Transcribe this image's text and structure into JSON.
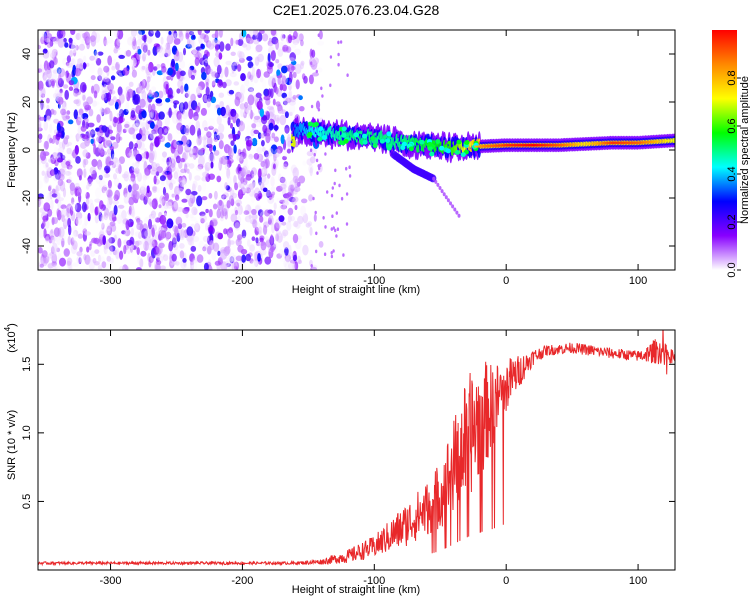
{
  "title": "C2E1.2025.076.23.04.G28",
  "chart_data": [
    {
      "type": "heatmap",
      "xlabel": "Height of straight line (km)",
      "ylabel": "Frequency (Hz)",
      "xlim": [
        -355,
        128
      ],
      "ylim": [
        -50,
        50
      ],
      "xticks": [
        "-300",
        "-200",
        "-100",
        "0",
        "100"
      ],
      "xtick_values": [
        -300,
        -200,
        -100,
        0,
        100
      ],
      "yticks": [
        "40",
        "20",
        "0",
        "-20",
        "-40"
      ],
      "ytick_values": [
        40,
        20,
        0,
        -20,
        -40
      ],
      "colorbar": {
        "label": "Normalized spectral amplitude",
        "ticks": [
          "0.0",
          "0.2",
          "0.4",
          "0.6",
          "0.8"
        ],
        "tick_values": [
          0.0,
          0.2,
          0.4,
          0.6,
          0.8
        ],
        "range": [
          0,
          1
        ],
        "colors": [
          "#ffffff",
          "#8800ff",
          "#0000ff",
          "#00ffff",
          "#00ff00",
          "#ffff00",
          "#ff8800",
          "#ff0000"
        ]
      },
      "noise_region": {
        "x_from": -355,
        "x_to": -148,
        "level": 0.18
      },
      "signal_track": [
        {
          "x": -160,
          "y": 8,
          "amp": 0.35
        },
        {
          "x": -140,
          "y": 7,
          "amp": 0.45
        },
        {
          "x": -120,
          "y": 6,
          "amp": 0.5
        },
        {
          "x": -100,
          "y": 5,
          "amp": 0.5
        },
        {
          "x": -80,
          "y": 3,
          "amp": 0.5
        },
        {
          "x": -60,
          "y": 2,
          "amp": 0.55
        },
        {
          "x": -40,
          "y": 1,
          "amp": 0.6
        },
        {
          "x": -20,
          "y": 1.5,
          "amp": 0.85
        },
        {
          "x": 0,
          "y": 2,
          "amp": 0.95
        },
        {
          "x": 20,
          "y": 2,
          "amp": 1.0
        },
        {
          "x": 40,
          "y": 2,
          "amp": 0.9
        },
        {
          "x": 60,
          "y": 2.5,
          "amp": 0.75
        },
        {
          "x": 80,
          "y": 3,
          "amp": 0.95
        },
        {
          "x": 100,
          "y": 3,
          "amp": 0.9
        },
        {
          "x": 128,
          "y": 4,
          "amp": 0.7
        }
      ],
      "signal_branch": [
        {
          "x": -85,
          "y": -2
        },
        {
          "x": -70,
          "y": -8
        },
        {
          "x": -55,
          "y": -12
        },
        {
          "x": -35,
          "y": -28
        }
      ]
    },
    {
      "type": "line",
      "xlabel": "Height of straight line (km)",
      "ylabel": "SNR (10 * v/v)",
      "y_multiplier": "(x10",
      "y_multiplier_exp": "4",
      "y_multiplier_close": ")",
      "xlim": [
        -355,
        128
      ],
      "ylim": [
        0,
        1.75
      ],
      "xticks": [
        "-300",
        "-200",
        "-100",
        "0",
        "100"
      ],
      "xtick_values": [
        -300,
        -200,
        -100,
        0,
        100
      ],
      "yticks": [
        "0.5",
        "1.0",
        "1.5"
      ],
      "ytick_values": [
        0.5,
        1.0,
        1.5
      ],
      "series": [
        {
          "color": "#e8282a",
          "x": [
            -355,
            -300,
            -250,
            -200,
            -160,
            -140,
            -120,
            -100,
            -80,
            -60,
            -50,
            -40,
            -30,
            -20,
            -10,
            0,
            10,
            20,
            30,
            50,
            80,
            100,
            115,
            128
          ],
          "y": [
            0.05,
            0.05,
            0.05,
            0.05,
            0.05,
            0.06,
            0.1,
            0.17,
            0.3,
            0.45,
            0.55,
            0.75,
            0.95,
            1.1,
            1.2,
            1.35,
            1.45,
            1.55,
            1.6,
            1.62,
            1.58,
            1.56,
            1.6,
            1.55
          ],
          "noise_amp": [
            0.01,
            0.01,
            0.01,
            0.01,
            0.01,
            0.02,
            0.05,
            0.08,
            0.15,
            0.2,
            0.25,
            0.35,
            0.45,
            0.45,
            0.3,
            0.2,
            0.12,
            0.06,
            0.04,
            0.04,
            0.04,
            0.04,
            0.1,
            0.04
          ]
        }
      ]
    }
  ]
}
